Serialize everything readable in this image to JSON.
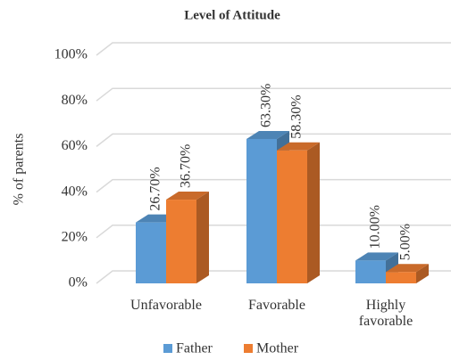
{
  "chart_data": {
    "type": "bar3d",
    "title": "Level of Attitude",
    "ylabel": "% of parents",
    "categories": [
      "Unfavorable",
      "Favorable",
      "Highly favorable"
    ],
    "series": [
      {
        "name": "Father",
        "color": "#5b9bd5",
        "values": [
          26.7,
          63.3,
          10.0
        ],
        "value_labels": [
          "26.70%",
          "63.30%",
          "10.00%"
        ]
      },
      {
        "name": "Mother",
        "color": "#ed7d31",
        "values": [
          36.7,
          58.3,
          5.0
        ],
        "value_labels": [
          "36.70%",
          "58.30%",
          "5.00%"
        ]
      }
    ],
    "ylim": [
      0,
      100
    ],
    "yticks": [
      {
        "value": 0,
        "label": "0%"
      },
      {
        "value": 20,
        "label": "20%"
      },
      {
        "value": 40,
        "label": "40%"
      },
      {
        "value": 60,
        "label": "60%"
      },
      {
        "value": 80,
        "label": "80%"
      },
      {
        "value": 100,
        "label": "100%"
      }
    ],
    "grid": true,
    "legend": "bottom"
  }
}
